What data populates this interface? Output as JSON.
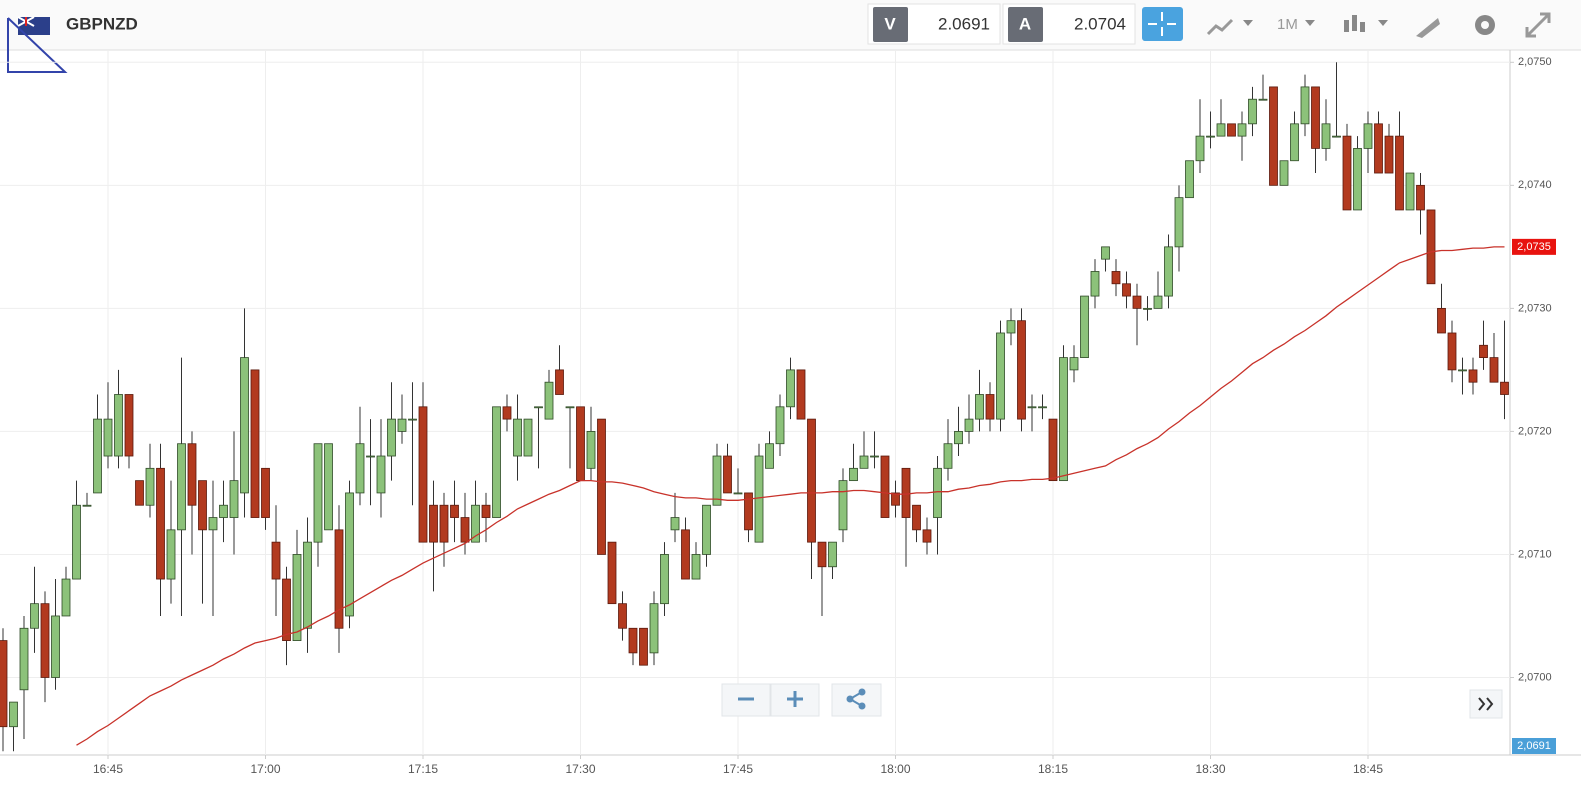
{
  "header": {
    "symbol": "GBPNZD",
    "bid_label": "V",
    "bid": "2.0691",
    "ask_label": "A",
    "ask": "2.0704",
    "timeframe": "1M"
  },
  "chart_data": {
    "type": "candlestick",
    "x": [
      "16:35",
      "16:36",
      "16:37",
      "16:38",
      "16:39",
      "16:40",
      "16:41",
      "16:42",
      "16:43",
      "16:44",
      "16:45",
      "16:46",
      "16:47",
      "16:48",
      "16:49",
      "16:50",
      "16:51",
      "16:52",
      "16:53",
      "16:54",
      "16:55",
      "16:56",
      "16:57",
      "16:58",
      "16:59",
      "17:00",
      "17:01",
      "17:02",
      "17:03",
      "17:04",
      "17:05",
      "17:06",
      "17:07",
      "17:08",
      "17:09",
      "17:10",
      "17:11",
      "17:12",
      "17:13",
      "17:14",
      "17:15",
      "17:16",
      "17:17",
      "17:18",
      "17:19",
      "17:20",
      "17:21",
      "17:22",
      "17:23",
      "17:24",
      "17:25",
      "17:26",
      "17:27",
      "17:28",
      "17:29",
      "17:30",
      "17:31",
      "17:32",
      "17:33",
      "17:34",
      "17:35",
      "17:36",
      "17:37",
      "17:38",
      "17:39",
      "17:40",
      "17:41",
      "17:42",
      "17:43",
      "17:44",
      "17:45",
      "17:46",
      "17:47",
      "17:48",
      "17:49",
      "17:50",
      "17:51",
      "17:52",
      "17:53",
      "17:54",
      "17:55",
      "17:56",
      "17:57",
      "17:58",
      "17:59",
      "18:00",
      "18:01",
      "18:02",
      "18:03",
      "18:04",
      "18:05",
      "18:06",
      "18:07",
      "18:08",
      "18:09",
      "18:10",
      "18:11",
      "18:12",
      "18:13",
      "18:14",
      "18:15",
      "18:16",
      "18:17",
      "18:18",
      "18:19",
      "18:20",
      "18:21",
      "18:22",
      "18:23",
      "18:24",
      "18:25",
      "18:26",
      "18:27",
      "18:28",
      "18:29",
      "18:30",
      "18:31",
      "18:32",
      "18:33",
      "18:34",
      "18:35",
      "18:36",
      "18:37",
      "18:38",
      "18:39",
      "18:40",
      "18:41",
      "18:42",
      "18:43",
      "18:44",
      "18:45",
      "18:46",
      "18:47",
      "18:48",
      "18:49",
      "18:50",
      "18:51",
      "18:52",
      "18:53",
      "18:54",
      "18:55",
      "18:56",
      "18:57",
      "18:58"
    ],
    "open": [
      2.0703,
      2.0696,
      2.0699,
      2.0704,
      2.0706,
      2.07,
      2.0705,
      2.0708,
      2.0714,
      2.0715,
      2.0718,
      2.0718,
      2.0723,
      2.0716,
      2.0714,
      2.0717,
      2.0708,
      2.0712,
      2.0719,
      2.0716,
      2.0712,
      2.0713,
      2.0713,
      2.0715,
      2.0725,
      2.0717,
      2.0711,
      2.0708,
      2.0703,
      2.0704,
      2.0711,
      2.0712,
      2.0712,
      2.0705,
      2.0715,
      2.0718,
      2.0715,
      2.0718,
      2.072,
      2.0721,
      2.0722,
      2.0714,
      2.0714,
      2.0714,
      2.0713,
      2.0711,
      2.0714,
      2.0713,
      2.0722,
      2.0718,
      2.0718,
      2.0722,
      2.0721,
      2.0725,
      2.0722,
      2.0722,
      2.0717,
      2.0721,
      2.0711,
      2.0706,
      2.0704,
      2.0704,
      2.0702,
      2.0706,
      2.0712,
      2.0712,
      2.0708,
      2.071,
      2.0714,
      2.0718,
      2.0715,
      2.0715,
      2.0711,
      2.0717,
      2.0719,
      2.0722,
      2.0725,
      2.0721,
      2.0711,
      2.0709,
      2.0712,
      2.0716,
      2.0717,
      2.0718,
      2.0718,
      2.0715,
      2.0717,
      2.0714,
      2.0712,
      2.0713,
      2.0717,
      2.0719,
      2.072,
      2.0721,
      2.0723,
      2.0721,
      2.0728,
      2.0729,
      2.0722,
      2.0722,
      2.0721,
      2.0716,
      2.0725,
      2.0726,
      2.0731,
      2.0734,
      2.0733,
      2.0732,
      2.0731,
      2.073,
      2.073,
      2.0731,
      2.0735,
      2.0739,
      2.0742,
      2.0744,
      2.0744,
      2.0745,
      2.0744,
      2.0745,
      2.0747,
      2.0748,
      2.074,
      2.0742,
      2.0745,
      2.0748,
      2.0743,
      2.0744,
      2.0744,
      2.0738,
      2.0743,
      2.0745,
      2.0744,
      2.0744,
      2.0738,
      2.074,
      2.0738,
      2.073,
      2.0728,
      2.0725,
      2.0725,
      2.0727,
      2.0726,
      2.0724
    ],
    "high": [
      2.0704,
      2.0698,
      2.0705,
      2.0709,
      2.0707,
      2.0708,
      2.0709,
      2.0716,
      2.0715,
      2.0723,
      2.0724,
      2.0725,
      2.0723,
      2.0716,
      2.0719,
      2.0719,
      2.0716,
      2.0726,
      2.072,
      2.0716,
      2.0716,
      2.0716,
      2.072,
      2.073,
      2.0725,
      2.0717,
      2.0714,
      2.0709,
      2.0712,
      2.0713,
      2.0719,
      2.0719,
      2.0714,
      2.0716,
      2.0722,
      2.0721,
      2.0721,
      2.0724,
      2.0723,
      2.0724,
      2.0724,
      2.0716,
      2.0715,
      2.0716,
      2.0715,
      2.0716,
      2.0715,
      2.0722,
      2.0723,
      2.0723,
      2.0721,
      2.0722,
      2.0725,
      2.0727,
      2.0722,
      2.0722,
      2.0722,
      2.0721,
      2.0711,
      2.0707,
      2.0704,
      2.0704,
      2.0707,
      2.0711,
      2.0715,
      2.0713,
      2.0711,
      2.0714,
      2.0719,
      2.0719,
      2.0717,
      2.0715,
      2.0719,
      2.072,
      2.0723,
      2.0726,
      2.0725,
      2.0721,
      2.0711,
      2.0711,
      2.0717,
      2.0719,
      2.072,
      2.072,
      2.0718,
      2.0716,
      2.0717,
      2.0714,
      2.0713,
      2.0718,
      2.0721,
      2.0722,
      2.0723,
      2.0725,
      2.0724,
      2.0729,
      2.073,
      2.073,
      2.0723,
      2.0723,
      2.0721,
      2.0727,
      2.0727,
      2.0731,
      2.0734,
      2.0735,
      2.0734,
      2.0733,
      2.0732,
      2.0731,
      2.0733,
      2.0736,
      2.074,
      2.0742,
      2.0747,
      2.0746,
      2.0747,
      2.0745,
      2.0746,
      2.0748,
      2.0749,
      2.0748,
      2.0742,
      2.0746,
      2.0749,
      2.0748,
      2.0747,
      2.075,
      2.0745,
      2.0744,
      2.0746,
      2.0746,
      2.0745,
      2.0746,
      2.0741,
      2.0741,
      2.0738,
      2.0732,
      2.0729,
      2.0726,
      2.0726,
      2.0729,
      2.0728,
      2.0729
    ],
    "low": [
      2.0694,
      2.0694,
      2.0695,
      2.0702,
      2.0698,
      2.0699,
      2.0705,
      2.0708,
      2.0714,
      2.0715,
      2.0717,
      2.0717,
      2.0717,
      2.0714,
      2.0713,
      2.0705,
      2.0706,
      2.0705,
      2.071,
      2.0706,
      2.0705,
      2.0711,
      2.071,
      2.0713,
      2.0713,
      2.0712,
      2.0705,
      2.0701,
      2.0703,
      2.0702,
      2.0709,
      2.0712,
      2.0702,
      2.0704,
      2.0714,
      2.0714,
      2.0713,
      2.0716,
      2.0719,
      2.0714,
      2.0711,
      2.0707,
      2.0709,
      2.0711,
      2.071,
      2.0711,
      2.0711,
      2.0713,
      2.072,
      2.0716,
      2.0718,
      2.0717,
      2.0721,
      2.0723,
      2.0717,
      2.0716,
      2.0716,
      2.071,
      2.0706,
      2.0703,
      2.0701,
      2.0701,
      2.0701,
      2.0705,
      2.0711,
      2.0708,
      2.0708,
      2.0709,
      2.0714,
      2.0715,
      2.0715,
      2.0711,
      2.0711,
      2.0717,
      2.0718,
      2.0721,
      2.0721,
      2.0708,
      2.0705,
      2.0708,
      2.0711,
      2.0716,
      2.0717,
      2.0717,
      2.0713,
      2.0713,
      2.0709,
      2.0711,
      2.071,
      2.071,
      2.0716,
      2.0718,
      2.0719,
      2.072,
      2.072,
      2.072,
      2.0727,
      2.072,
      2.072,
      2.0721,
      2.0716,
      2.0716,
      2.0724,
      2.0726,
      2.073,
      2.0733,
      2.0731,
      2.073,
      2.0727,
      2.0729,
      2.073,
      2.073,
      2.0733,
      2.0739,
      2.0741,
      2.0743,
      2.0744,
      2.0744,
      2.0742,
      2.0744,
      2.0747,
      2.074,
      2.074,
      2.0742,
      2.0744,
      2.0741,
      2.0742,
      2.0744,
      2.0738,
      2.0738,
      2.0741,
      2.0741,
      2.0741,
      2.0738,
      2.0738,
      2.0736,
      2.0732,
      2.0728,
      2.0724,
      2.0723,
      2.0723,
      2.0725,
      2.0724,
      2.0721
    ],
    "close": [
      2.0696,
      2.0698,
      2.0704,
      2.0706,
      2.07,
      2.0705,
      2.0708,
      2.0714,
      2.0714,
      2.0721,
      2.0721,
      2.0723,
      2.0718,
      2.0714,
      2.0717,
      2.0708,
      2.0712,
      2.0719,
      2.0714,
      2.0712,
      2.0713,
      2.0714,
      2.0716,
      2.0726,
      2.0713,
      2.0713,
      2.0708,
      2.0703,
      2.071,
      2.0711,
      2.0719,
      2.0719,
      2.0704,
      2.0715,
      2.0719,
      2.0718,
      2.0718,
      2.0721,
      2.0721,
      2.0721,
      2.0711,
      2.0711,
      2.0711,
      2.0713,
      2.0711,
      2.0714,
      2.0713,
      2.0722,
      2.0721,
      2.0721,
      2.0721,
      2.0722,
      2.0724,
      2.0723,
      2.0722,
      2.0716,
      2.072,
      2.071,
      2.0706,
      2.0704,
      2.0702,
      2.0701,
      2.0706,
      2.071,
      2.0713,
      2.0708,
      2.071,
      2.0714,
      2.0718,
      2.0715,
      2.0715,
      2.0712,
      2.0718,
      2.0719,
      2.0722,
      2.0725,
      2.0721,
      2.0711,
      2.0709,
      2.0711,
      2.0716,
      2.0717,
      2.0718,
      2.0718,
      2.0713,
      2.0714,
      2.0713,
      2.0712,
      2.0711,
      2.0717,
      2.0719,
      2.072,
      2.0721,
      2.0723,
      2.0721,
      2.0728,
      2.0729,
      2.0721,
      2.0722,
      2.0722,
      2.0716,
      2.0726,
      2.0726,
      2.0731,
      2.0733,
      2.0735,
      2.0732,
      2.0731,
      2.073,
      2.073,
      2.0731,
      2.0735,
      2.0739,
      2.0742,
      2.0744,
      2.0744,
      2.0745,
      2.0744,
      2.0745,
      2.0747,
      2.0747,
      2.074,
      2.0742,
      2.0745,
      2.0748,
      2.0743,
      2.0745,
      2.0744,
      2.0738,
      2.0743,
      2.0745,
      2.0741,
      2.0741,
      2.0738,
      2.0741,
      2.0738,
      2.0732,
      2.0728,
      2.0725,
      2.0725,
      2.0724,
      2.0726,
      2.0724,
      2.0723
    ],
    "up_color": "#8cc27a",
    "down_color": "#b23a1f",
    "moving_average": {
      "color": "#c8322a",
      "last_label": "2,0735",
      "values": [
        null,
        null,
        null,
        null,
        null,
        null,
        null,
        2.06945,
        2.0695,
        2.06956,
        2.06961,
        2.06967,
        2.06973,
        2.06979,
        2.06985,
        2.06989,
        2.06993,
        2.06998,
        2.07002,
        2.07006,
        2.0701,
        2.07015,
        2.07019,
        2.07024,
        2.07028,
        2.0703,
        2.07032,
        2.07035,
        2.07037,
        2.07041,
        2.07046,
        2.0705,
        2.07055,
        2.07059,
        2.07064,
        2.07069,
        2.07074,
        2.07079,
        2.07083,
        2.07088,
        2.07093,
        2.07097,
        2.07101,
        2.07105,
        2.07109,
        2.07115,
        2.0712,
        2.07126,
        2.07131,
        2.07137,
        2.07141,
        2.07145,
        2.07149,
        2.07152,
        2.07156,
        2.0716,
        2.0716,
        2.07159,
        2.07159,
        2.07158,
        2.07156,
        2.07154,
        2.07151,
        2.07149,
        2.07147,
        2.07146,
        2.07146,
        2.07145,
        2.07145,
        2.07144,
        2.07144,
        2.07145,
        2.07146,
        2.07147,
        2.07148,
        2.07149,
        2.0715,
        2.0715,
        2.0715,
        2.07151,
        2.07151,
        2.07152,
        2.07152,
        2.07151,
        2.0715,
        2.07149,
        2.07149,
        2.0715,
        2.0715,
        2.07151,
        2.07151,
        2.07153,
        2.07154,
        2.07156,
        2.07157,
        2.07159,
        2.0716,
        2.0716,
        2.07161,
        2.07161,
        2.07162,
        2.07164,
        2.07166,
        2.07168,
        2.0717,
        2.07172,
        2.07177,
        2.07181,
        2.07186,
        2.0719,
        2.07195,
        2.07202,
        2.07208,
        2.07215,
        2.07221,
        2.07228,
        2.07235,
        2.07241,
        2.07248,
        2.07255,
        2.0726,
        2.07266,
        2.07271,
        2.07277,
        2.07282,
        2.07288,
        2.07294,
        2.07301,
        2.07307,
        2.07313,
        2.07319,
        2.07325,
        2.07331,
        2.07337,
        2.0734,
        2.07343,
        2.07346,
        2.07347,
        2.07347,
        2.07348,
        2.07349,
        2.07349,
        2.0735,
        2.0735
      ]
    },
    "current_price": {
      "value": 2.0691,
      "label": "2,0691",
      "color": "#4a9fd8"
    },
    "ylim": [
      2.06937,
      2.0751
    ],
    "yticks": [
      {
        "value": 2.07,
        "label": "2,0700"
      },
      {
        "value": 2.071,
        "label": "2,0710"
      },
      {
        "value": 2.072,
        "label": "2,0720"
      },
      {
        "value": 2.073,
        "label": "2,0730"
      },
      {
        "value": 2.074,
        "label": "2,0740"
      },
      {
        "value": 2.075,
        "label": "2,0750"
      }
    ],
    "grid": true
  }
}
